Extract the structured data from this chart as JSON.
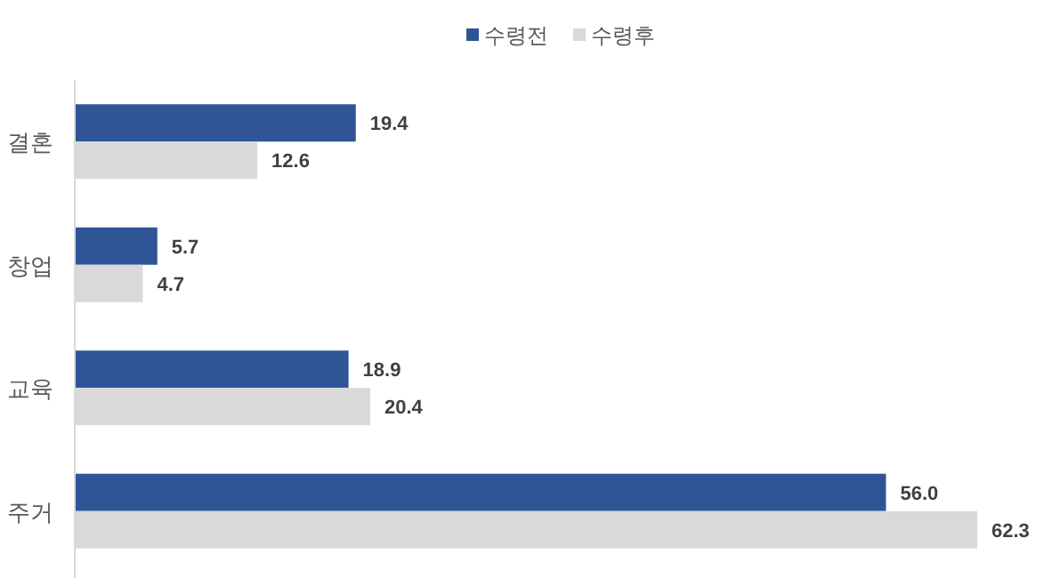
{
  "chart_data": {
    "type": "bar",
    "orientation": "horizontal",
    "legend": "top",
    "categories": [
      "결혼",
      "창업",
      "교육",
      "주거"
    ],
    "series": [
      {
        "name": "수령전",
        "color": "#2f5597",
        "values": [
          19.4,
          5.7,
          18.9,
          56.0
        ],
        "value_labels": [
          "19.4",
          "5.7",
          "18.9",
          "56.0"
        ]
      },
      {
        "name": "수령후",
        "color": "#d9d9d9",
        "values": [
          12.6,
          4.7,
          20.4,
          62.3
        ],
        "value_labels": [
          "12.6",
          "4.7",
          "20.4",
          "62.3"
        ]
      }
    ]
  }
}
